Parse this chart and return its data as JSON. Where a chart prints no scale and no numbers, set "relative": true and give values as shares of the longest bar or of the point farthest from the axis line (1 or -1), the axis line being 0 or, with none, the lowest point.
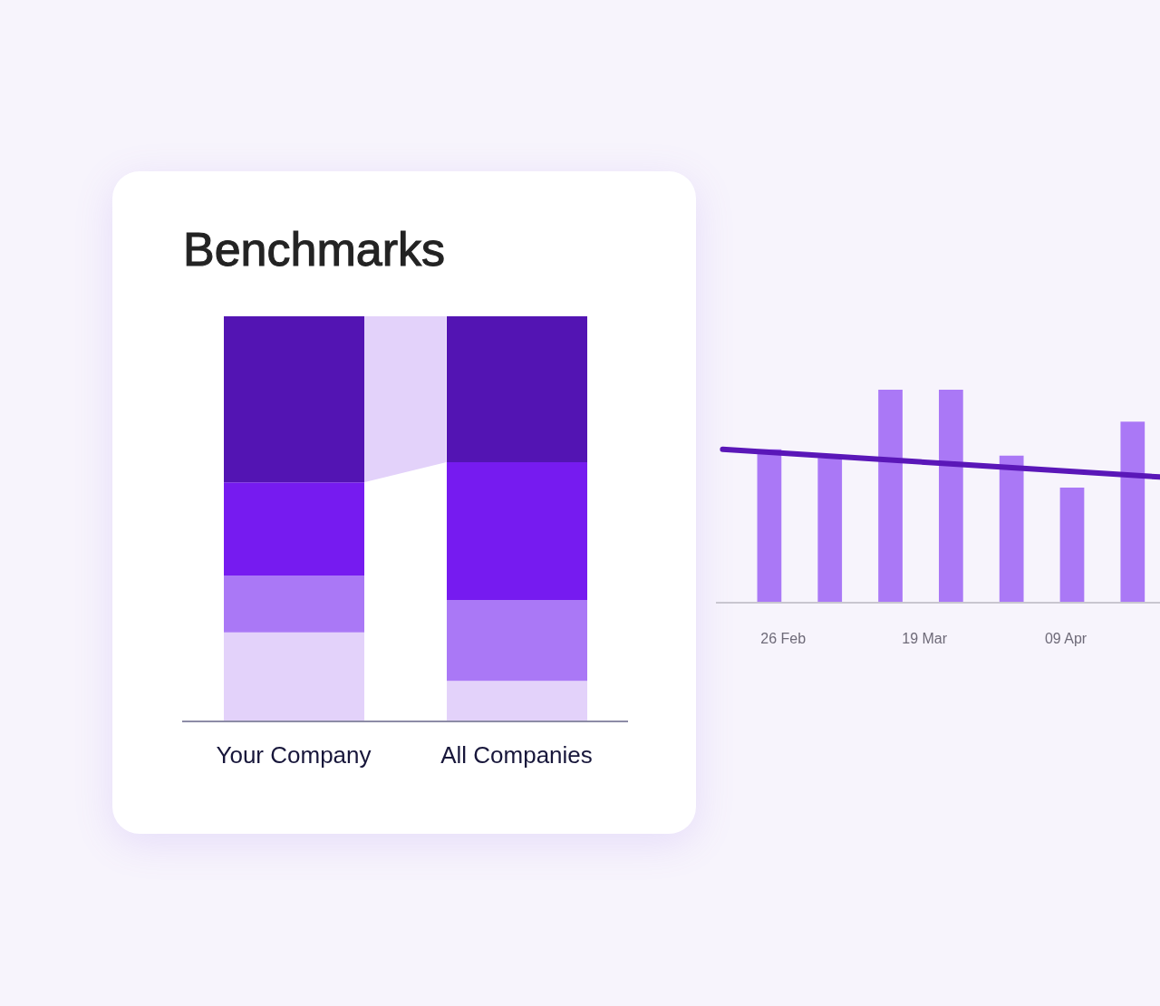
{
  "chart_data": [
    {
      "type": "bar",
      "title": "Benchmarks",
      "categories": [
        "Your Company",
        "All Companies"
      ],
      "stacked": true,
      "relative": true,
      "series": [
        {
          "color": "#e3d2fa",
          "values": [
            0.22,
            0.1
          ]
        },
        {
          "color": "#aa78f6",
          "values": [
            0.14,
            0.2
          ]
        },
        {
          "color": "#761bf0",
          "values": [
            0.23,
            0.34
          ]
        },
        {
          "color": "#5314b3",
          "values": [
            0.41,
            0.36
          ]
        }
      ]
    },
    {
      "type": "bar",
      "relative": true,
      "x": [
        "--02-24",
        "--03-05",
        "--03-14",
        "--03-23",
        "--04-01",
        "--04-10",
        "--04-19"
      ],
      "xlim": [
        "--02-16",
        "--04-23"
      ],
      "xticks": [
        {
          "value": "--02-26",
          "label": "26 Feb"
        },
        {
          "value": "--03-19",
          "label": "19 Mar"
        },
        {
          "value": "--04-09",
          "label": "09 Apr"
        }
      ],
      "series": [
        {
          "color": "#aa78f6",
          "values": [
            0.72,
            0.68,
            1,
            1,
            0.69,
            0.54,
            0.85
          ]
        },
        {
          "type": "line",
          "color": "#5a17b8",
          "x": [
            "--02-17",
            "--04-23"
          ],
          "values": [
            0.72,
            0.59
          ]
        }
      ]
    }
  ]
}
